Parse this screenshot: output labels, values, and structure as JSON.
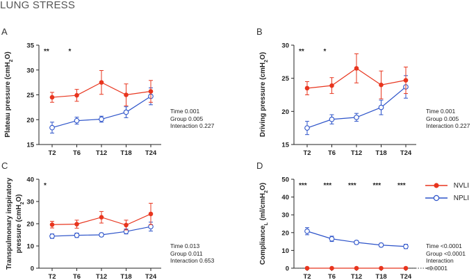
{
  "figure_title": "LUNG STRESS",
  "colors": {
    "nvli": "#e8351e",
    "npli": "#2b52c9",
    "axis": "#222222"
  },
  "legend": [
    {
      "label": "NVLI",
      "series": "NVLI"
    },
    {
      "label": "NPLI",
      "series": "NPLI"
    }
  ],
  "chart_data": [
    {
      "panel": "A",
      "type": "line",
      "categories": [
        "T2",
        "T6",
        "T12",
        "T18",
        "T24"
      ],
      "ylabel_parts": [
        "Plateau pressure (cmH",
        "2",
        "O)"
      ],
      "ylim": [
        15,
        35
      ],
      "yticks": [
        "15",
        "20",
        "25",
        "30",
        "35"
      ],
      "series": [
        {
          "name": "NVLI",
          "values": [
            24.5,
            24.9,
            27.5,
            25.0,
            25.7
          ],
          "err": [
            1.0,
            1.2,
            2.4,
            2.2,
            2.2
          ]
        },
        {
          "name": "NPLI",
          "values": [
            18.4,
            19.8,
            20.1,
            21.5,
            24.7
          ],
          "err": [
            1.1,
            0.7,
            0.6,
            1.1,
            1.7
          ]
        }
      ],
      "significance": [
        "**",
        "*",
        "",
        "",
        ""
      ],
      "stats": [
        "Time 0.001",
        "Group 0.005",
        "Interaction 0.227"
      ]
    },
    {
      "panel": "B",
      "type": "line",
      "categories": [
        "T2",
        "T6",
        "T12",
        "T18",
        "T24"
      ],
      "ylabel_parts": [
        "Driving pressure (cmH",
        "2",
        "O)"
      ],
      "ylim": [
        15,
        30
      ],
      "yticks": [
        "15",
        "20",
        "25",
        "30"
      ],
      "series": [
        {
          "name": "NVLI",
          "values": [
            23.5,
            23.9,
            26.5,
            24.0,
            24.7
          ],
          "err": [
            1.0,
            1.2,
            2.2,
            2.1,
            2.0
          ]
        },
        {
          "name": "NPLI",
          "values": [
            17.5,
            18.8,
            19.1,
            20.6,
            23.7
          ],
          "err": [
            1.0,
            0.7,
            0.6,
            1.1,
            1.7
          ]
        }
      ],
      "significance": [
        "**",
        "*",
        "",
        "",
        ""
      ],
      "stats": [
        "Time 0.001",
        "Group 0.005",
        "Interaction 0.227"
      ]
    },
    {
      "panel": "C",
      "type": "line",
      "categories": [
        "T2",
        "T6",
        "T12",
        "T18",
        "T24"
      ],
      "ylabel_lines": [
        "Transpulmonary inspiratory"
      ],
      "ylabel_parts": [
        "pressure (cmH",
        "2",
        "O)"
      ],
      "ylim": [
        0,
        40
      ],
      "yticks": [
        "0",
        "10",
        "20",
        "30",
        "40"
      ],
      "series": [
        {
          "name": "NVLI",
          "values": [
            19.6,
            19.8,
            22.9,
            19.4,
            24.4
          ],
          "err": [
            1.5,
            1.8,
            2.6,
            2.2,
            4.8
          ]
        },
        {
          "name": "NPLI",
          "values": [
            14.4,
            14.8,
            15.0,
            16.5,
            18.7
          ],
          "err": [
            1.0,
            1.0,
            0.8,
            1.1,
            2.0
          ]
        }
      ],
      "significance": [
        "*",
        "",
        "",
        "",
        ""
      ],
      "stats": [
        "Time 0.013",
        "Group 0.011",
        "Interaction 0.653"
      ]
    },
    {
      "panel": "D",
      "type": "line",
      "categories": [
        "T2",
        "T6",
        "T12",
        "T18",
        "T24"
      ],
      "ylabel_parts": [
        "Compliance",
        "L",
        " (ml/cmH",
        "2",
        "O)"
      ],
      "ylim": [
        0,
        50
      ],
      "yticks": [
        "0",
        "10",
        "20",
        "30",
        "40",
        "50"
      ],
      "reference_line": 0,
      "series": [
        {
          "name": "NVLI",
          "values": [
            0,
            0,
            0,
            0,
            0
          ],
          "err": [
            0,
            0,
            0,
            0,
            0
          ]
        },
        {
          "name": "NPLI",
          "values": [
            20.8,
            16.5,
            14.5,
            13.0,
            12.2
          ],
          "err": [
            2.0,
            1.5,
            1.0,
            1.0,
            1.2
          ]
        }
      ],
      "significance": [
        "***",
        "***",
        "***",
        "***",
        "***"
      ],
      "stats": [
        "Time <0.0001",
        "Group <0.0001",
        "Interaction <0.0001"
      ]
    }
  ]
}
